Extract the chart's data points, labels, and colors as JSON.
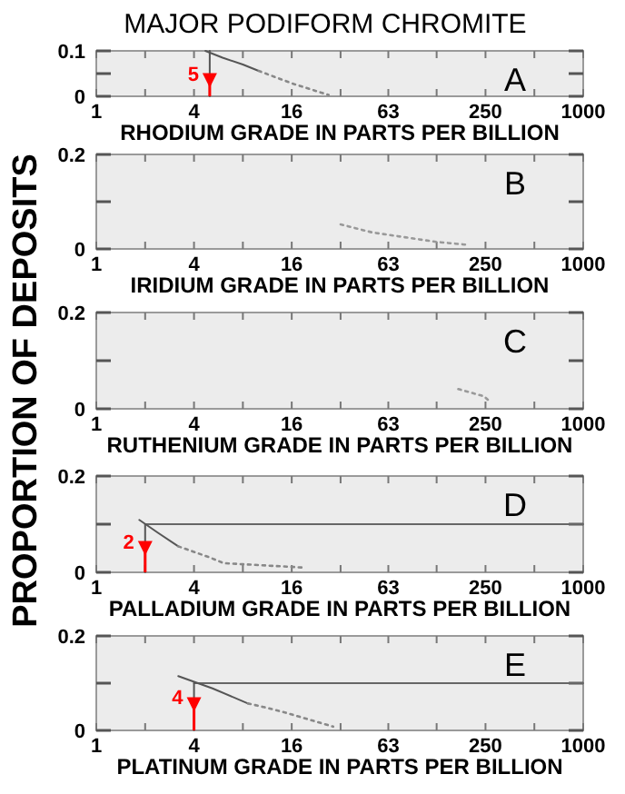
{
  "chart_data": [
    {
      "type": "line",
      "title": "MAJOR PODIFORM CHROMITE",
      "ylabel": "PROPORTION OF DEPOSITS",
      "xlabel": "RHODIUM GRADE IN PARTS PER BILLION",
      "log": "x",
      "xlim": [
        1,
        1000
      ],
      "ylim": [
        0,
        0.1
      ],
      "xticks": [
        1,
        {
          "value": 2,
          "label": null
        },
        4,
        {
          "value": 8,
          "label": null
        },
        16,
        {
          "value": 32,
          "label": null
        },
        63,
        {
          "value": 125,
          "label": null
        },
        250,
        {
          "value": 500,
          "label": null
        },
        1000
      ],
      "yticks": [
        0,
        0.1
      ],
      "grid": false,
      "annotations": [
        "A",
        {
          "text": "5",
          "x": 5,
          "y": 0.035
        }
      ],
      "series": [
        {
          "color": "#555555",
          "line_style": "solid",
          "x": [
            5,
            5
          ],
          "values": [
            0.1,
            0
          ]
        },
        {
          "color": "#555555",
          "line_style": "solid",
          "x": [
            4.7,
            6,
            8,
            10
          ],
          "values": [
            0.1,
            0.085,
            0.07,
            0.056
          ]
        },
        {
          "color": "#888888",
          "line_style": "dotted",
          "x": [
            10,
            12.5,
            16.5,
            27
          ],
          "values": [
            0.056,
            0.043,
            0.027,
            0.003
          ]
        }
      ]
    },
    {
      "type": "line",
      "xlabel": "IRIDIUM GRADE IN PARTS PER BILLION",
      "log": "x",
      "xlim": [
        1,
        1000
      ],
      "ylim": [
        0,
        0.2
      ],
      "xticks": [
        1,
        {
          "value": 2,
          "label": null
        },
        4,
        {
          "value": 8,
          "label": null
        },
        16,
        {
          "value": 32,
          "label": null
        },
        63,
        {
          "value": 125,
          "label": null
        },
        250,
        {
          "value": 500,
          "label": null
        },
        1000
      ],
      "yticks": [
        0,
        0.2
      ],
      "grid": false,
      "annotations": [
        "B"
      ],
      "series": [
        {
          "color": "#999999",
          "line_style": "dotted",
          "x": [
            32,
            50,
            124,
            190
          ],
          "values": [
            0.052,
            0.035,
            0.015,
            0.009
          ]
        }
      ]
    },
    {
      "type": "line",
      "xlabel": "RUTHENIUM GRADE IN PARTS PER BILLION",
      "log": "x",
      "xlim": [
        1,
        1000
      ],
      "ylim": [
        0,
        0.2
      ],
      "xticks": [
        1,
        {
          "value": 2,
          "label": null
        },
        4,
        {
          "value": 8,
          "label": null
        },
        16,
        {
          "value": 32,
          "label": null
        },
        63,
        {
          "value": 125,
          "label": null
        },
        250,
        {
          "value": 500,
          "label": null
        },
        1000
      ],
      "yticks": [
        0,
        0.2
      ],
      "grid": false,
      "annotations": [
        "C"
      ],
      "series": [
        {
          "color": "#999999",
          "line_style": "dotted",
          "x": [
            170,
            245,
            270
          ],
          "values": [
            0.041,
            0.026,
            0.013
          ]
        }
      ]
    },
    {
      "type": "line",
      "xlabel": "PALLADIUM GRADE IN PARTS PER BILLION",
      "log": "x",
      "xlim": [
        1,
        1000
      ],
      "ylim": [
        0,
        0.2
      ],
      "xticks": [
        1,
        {
          "value": 2,
          "label": null
        },
        4,
        {
          "value": 8,
          "label": null
        },
        16,
        {
          "value": 32,
          "label": null
        },
        63,
        {
          "value": 125,
          "label": null
        },
        250,
        {
          "value": 500,
          "label": null
        },
        1000
      ],
      "yticks": [
        0,
        0.2
      ],
      "grid": false,
      "annotations": [
        "D",
        {
          "text": "2",
          "x": 2,
          "y": 0.05
        }
      ],
      "series": [
        {
          "color": "#666666",
          "line_style": "solid",
          "x": [
            2,
            1000
          ],
          "values": [
            0.1,
            0.1
          ]
        },
        {
          "color": "#555555",
          "line_style": "solid",
          "x": [
            2,
            2
          ],
          "values": [
            0.1,
            0
          ]
        },
        {
          "color": "#555555",
          "line_style": "solid",
          "x": [
            1.84,
            2.4,
            3.2
          ],
          "values": [
            0.109,
            0.082,
            0.054
          ]
        },
        {
          "color": "#888888",
          "line_style": "dotted",
          "x": [
            3.2,
            4.9,
            6.1,
            18.8
          ],
          "values": [
            0.054,
            0.032,
            0.019,
            0.01
          ]
        }
      ]
    },
    {
      "type": "line",
      "xlabel": "PLATINUM GRADE IN PARTS PER BILLION",
      "log": "x",
      "xlim": [
        1,
        1000
      ],
      "ylim": [
        0,
        0.2
      ],
      "xticks": [
        1,
        {
          "value": 2,
          "label": null
        },
        4,
        {
          "value": 8,
          "label": null
        },
        16,
        {
          "value": 32,
          "label": null
        },
        63,
        {
          "value": 125,
          "label": null
        },
        250,
        {
          "value": 500,
          "label": null
        },
        1000
      ],
      "yticks": [
        0,
        0.2
      ],
      "grid": false,
      "annotations": [
        "E",
        {
          "text": "4",
          "x": 4,
          "y": 0.055
        }
      ],
      "series": [
        {
          "color": "#666666",
          "line_style": "solid",
          "x": [
            4,
            1000
          ],
          "values": [
            0.1,
            0.1
          ]
        },
        {
          "color": "#555555",
          "line_style": "solid",
          "x": [
            4,
            4
          ],
          "values": [
            0.1,
            0
          ]
        },
        {
          "color": "#555555",
          "line_style": "solid",
          "x": [
            3.2,
            5.2,
            8.6
          ],
          "values": [
            0.115,
            0.089,
            0.057
          ]
        },
        {
          "color": "#888888",
          "line_style": "dotted",
          "x": [
            8.6,
            11.2,
            14.5,
            28.8
          ],
          "values": [
            0.057,
            0.048,
            0.038,
            0.008
          ]
        }
      ]
    }
  ]
}
